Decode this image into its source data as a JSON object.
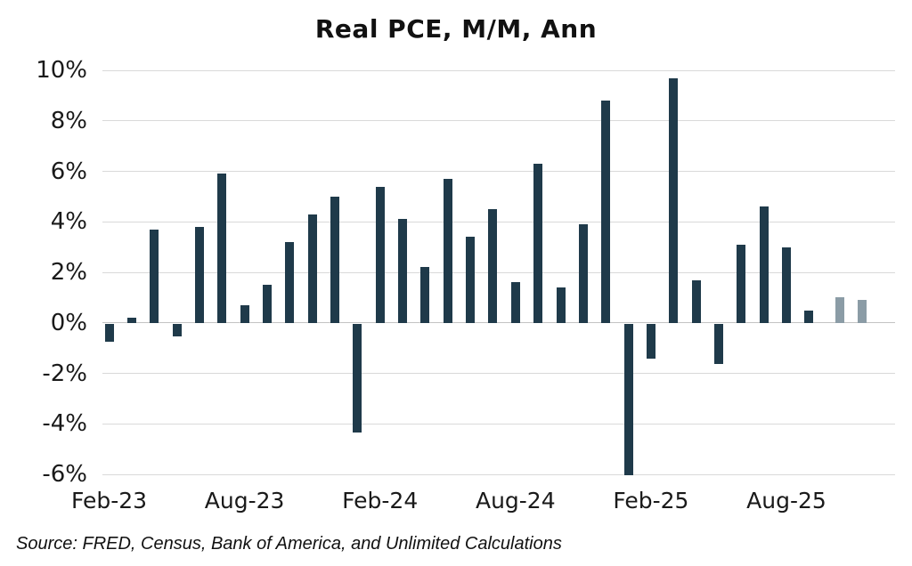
{
  "chart_data": {
    "type": "bar",
    "title": "Real PCE, M/M, Ann",
    "unit": "%",
    "ylim": [
      -6,
      10
    ],
    "ytick_labels": [
      "10%",
      "8%",
      "6%",
      "4%",
      "2%",
      "0%",
      "-2%",
      "-4%",
      "-6%"
    ],
    "ytick_values": [
      10,
      8,
      6,
      4,
      2,
      0,
      -2,
      -4,
      -6
    ],
    "grid": true,
    "legend": false,
    "categories": [
      "Feb-23",
      "Mar-23",
      "Apr-23",
      "May-23",
      "Jun-23",
      "Jul-23",
      "Aug-23",
      "Sep-23",
      "Oct-23",
      "Nov-23",
      "Dec-23",
      "Jan-24",
      "Feb-24",
      "Mar-24",
      "Apr-24",
      "May-24",
      "Jun-24",
      "Jul-24",
      "Aug-24",
      "Sep-24",
      "Oct-24",
      "Nov-24",
      "Dec-24",
      "Jan-25",
      "Feb-25",
      "Mar-25",
      "Apr-25",
      "May-25",
      "Jun-25",
      "Jul-25",
      "Aug-25",
      "Sep-25",
      "Oct-25",
      "Nov-25"
    ],
    "values": [
      -0.7,
      0.2,
      3.7,
      -0.5,
      3.8,
      5.9,
      0.7,
      1.5,
      3.2,
      4.3,
      5.0,
      -4.3,
      5.4,
      4.1,
      2.2,
      5.7,
      3.4,
      4.5,
      1.6,
      6.3,
      1.4,
      3.9,
      8.8,
      -6.0,
      -1.4,
      9.7,
      1.7,
      -1.6,
      3.1,
      4.6,
      3.0,
      0.5,
      1.0,
      0.9
    ],
    "estimate_flags": [
      false,
      false,
      false,
      false,
      false,
      false,
      false,
      false,
      false,
      false,
      false,
      false,
      false,
      false,
      false,
      false,
      false,
      false,
      false,
      false,
      false,
      false,
      false,
      false,
      false,
      false,
      false,
      false,
      false,
      false,
      false,
      false,
      true,
      true
    ],
    "xtick_labels": [
      {
        "label": "Feb-23",
        "index": 0
      },
      {
        "label": "Aug-23",
        "index": 6
      },
      {
        "label": "Feb-24",
        "index": 12
      },
      {
        "label": "Aug-24",
        "index": 18
      },
      {
        "label": "Feb-25",
        "index": 24
      },
      {
        "label": "Aug-25",
        "index": 30
      }
    ],
    "colors": {
      "bar": "#1f3a4a",
      "estimate_bar": "#8b9ca6",
      "gridline": "#d9d9d9",
      "zero_line": "#c3c3c3"
    }
  },
  "source_note": "Source: FRED, Census, Bank of America, and Unlimited Calculations"
}
